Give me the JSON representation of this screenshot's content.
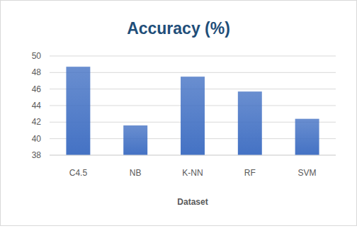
{
  "chart_data": {
    "type": "bar",
    "title": "Accuracy (%)",
    "x_label": "Dataset",
    "categories": [
      "C4.5",
      "NB",
      "K-NN",
      "RF",
      "SVM"
    ],
    "values": [
      48.7,
      41.6,
      47.5,
      45.7,
      42.4
    ],
    "color": "#4472c4",
    "ylim": [
      38,
      50
    ],
    "yticks": [
      38,
      40,
      42,
      44,
      46,
      48,
      50
    ],
    "grid": true
  }
}
